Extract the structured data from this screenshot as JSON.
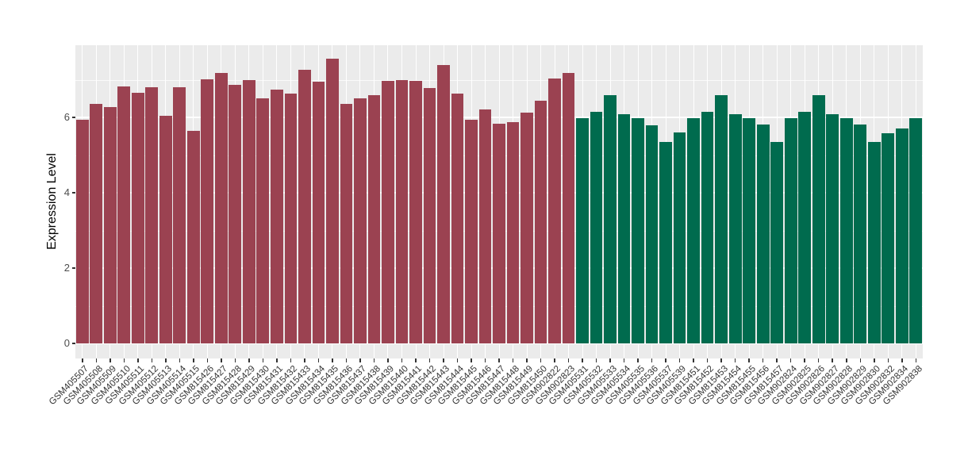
{
  "chart_data": {
    "type": "bar",
    "title": "",
    "xlabel": "",
    "ylabel": "Expression Level",
    "yticks": [
      0,
      2,
      4,
      6
    ],
    "ylim": [
      -0.4,
      7.92
    ],
    "grid": "on",
    "legend": "none",
    "panel_background": "#EBEBEB",
    "gridline_color": "#FFFFFF",
    "tick_mark_color": "#333333",
    "y_tick_label_color": "#4D4D4D",
    "x_tick_label_color": "#333333",
    "bar_colors": {
      "red": "#9B4251",
      "green": "#006B4E"
    },
    "samples": [
      {
        "id": "GSM405507",
        "value": 5.94,
        "group": "red"
      },
      {
        "id": "GSM405508",
        "value": 6.36,
        "group": "red"
      },
      {
        "id": "GSM405509",
        "value": 6.27,
        "group": "red"
      },
      {
        "id": "GSM405510",
        "value": 6.82,
        "group": "red"
      },
      {
        "id": "GSM405511",
        "value": 6.65,
        "group": "red"
      },
      {
        "id": "GSM405512",
        "value": 6.81,
        "group": "red"
      },
      {
        "id": "GSM405513",
        "value": 6.05,
        "group": "red"
      },
      {
        "id": "GSM405514",
        "value": 6.8,
        "group": "red"
      },
      {
        "id": "GSM405515",
        "value": 5.64,
        "group": "red"
      },
      {
        "id": "GSM815426",
        "value": 7.02,
        "group": "red"
      },
      {
        "id": "GSM815427",
        "value": 7.18,
        "group": "red"
      },
      {
        "id": "GSM815428",
        "value": 6.86,
        "group": "red"
      },
      {
        "id": "GSM815429",
        "value": 6.98,
        "group": "red"
      },
      {
        "id": "GSM815430",
        "value": 6.51,
        "group": "red"
      },
      {
        "id": "GSM815431",
        "value": 6.74,
        "group": "red"
      },
      {
        "id": "GSM815432",
        "value": 6.63,
        "group": "red"
      },
      {
        "id": "GSM815433",
        "value": 7.27,
        "group": "red"
      },
      {
        "id": "GSM815434",
        "value": 6.94,
        "group": "red"
      },
      {
        "id": "GSM815435",
        "value": 7.55,
        "group": "red"
      },
      {
        "id": "GSM815436",
        "value": 6.35,
        "group": "red"
      },
      {
        "id": "GSM815437",
        "value": 6.5,
        "group": "red"
      },
      {
        "id": "GSM815438",
        "value": 6.59,
        "group": "red"
      },
      {
        "id": "GSM815439",
        "value": 6.97,
        "group": "red"
      },
      {
        "id": "GSM815440",
        "value": 6.99,
        "group": "red"
      },
      {
        "id": "GSM815441",
        "value": 6.97,
        "group": "red"
      },
      {
        "id": "GSM815442",
        "value": 6.79,
        "group": "red"
      },
      {
        "id": "GSM815443",
        "value": 7.38,
        "group": "red"
      },
      {
        "id": "GSM815444",
        "value": 6.64,
        "group": "red"
      },
      {
        "id": "GSM815445",
        "value": 5.94,
        "group": "red"
      },
      {
        "id": "GSM815446",
        "value": 6.21,
        "group": "red"
      },
      {
        "id": "GSM815447",
        "value": 5.84,
        "group": "red"
      },
      {
        "id": "GSM815448",
        "value": 5.87,
        "group": "red"
      },
      {
        "id": "GSM815449",
        "value": 6.13,
        "group": "red"
      },
      {
        "id": "GSM815450",
        "value": 6.45,
        "group": "red"
      },
      {
        "id": "GSM902822",
        "value": 7.04,
        "group": "red"
      },
      {
        "id": "GSM902823",
        "value": 7.19,
        "group": "red"
      },
      {
        "id": "GSM405531",
        "value": 5.97,
        "group": "green"
      },
      {
        "id": "GSM405532",
        "value": 6.15,
        "group": "green"
      },
      {
        "id": "GSM405533",
        "value": 6.59,
        "group": "green"
      },
      {
        "id": "GSM405534",
        "value": 6.08,
        "group": "green"
      },
      {
        "id": "GSM405535",
        "value": 5.97,
        "group": "green"
      },
      {
        "id": "GSM405536",
        "value": 5.8,
        "group": "green"
      },
      {
        "id": "GSM405537",
        "value": 5.34,
        "group": "green"
      },
      {
        "id": "GSM405539",
        "value": 5.61,
        "group": "green"
      },
      {
        "id": "GSM815451",
        "value": 5.97,
        "group": "green"
      },
      {
        "id": "GSM815452",
        "value": 6.14,
        "group": "green"
      },
      {
        "id": "GSM815453",
        "value": 6.6,
        "group": "green"
      },
      {
        "id": "GSM815454",
        "value": 6.08,
        "group": "green"
      },
      {
        "id": "GSM815455",
        "value": 5.97,
        "group": "green"
      },
      {
        "id": "GSM815456",
        "value": 5.81,
        "group": "green"
      },
      {
        "id": "GSM815457",
        "value": 5.35,
        "group": "green"
      },
      {
        "id": "GSM902824",
        "value": 5.97,
        "group": "green"
      },
      {
        "id": "GSM902825",
        "value": 6.14,
        "group": "green"
      },
      {
        "id": "GSM902826",
        "value": 6.6,
        "group": "green"
      },
      {
        "id": "GSM902827",
        "value": 6.08,
        "group": "green"
      },
      {
        "id": "GSM902828",
        "value": 5.97,
        "group": "green"
      },
      {
        "id": "GSM902829",
        "value": 5.81,
        "group": "green"
      },
      {
        "id": "GSM902830",
        "value": 5.35,
        "group": "green"
      },
      {
        "id": "GSM902832",
        "value": 5.59,
        "group": "green"
      },
      {
        "id": "GSM902834",
        "value": 5.7,
        "group": "green"
      },
      {
        "id": "GSM902838",
        "value": 5.97,
        "group": "green"
      }
    ]
  }
}
